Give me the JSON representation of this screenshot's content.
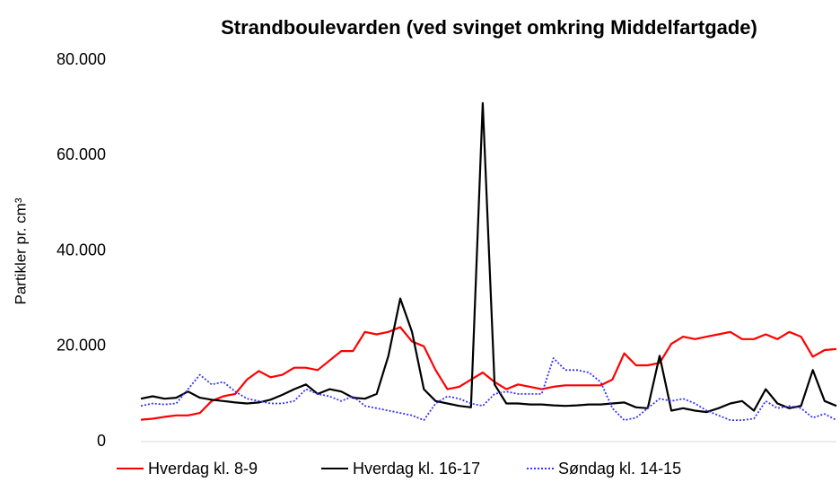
{
  "chart_data": {
    "type": "line",
    "title": "Strandboulevarden (ved svinget omkring Middelfartgade)",
    "y_label": "Partikler pr. cm³",
    "categories": [
      null,
      null,
      null,
      null,
      null,
      null,
      null,
      null,
      null,
      null,
      null,
      null,
      null,
      null,
      null,
      null,
      null,
      null,
      null,
      null,
      null,
      null,
      null,
      null,
      null,
      null,
      null,
      null,
      null,
      null,
      null,
      null,
      null,
      null,
      null,
      null,
      null,
      null,
      null,
      null,
      null,
      null,
      null,
      null,
      null,
      null,
      null,
      null,
      null,
      null,
      null,
      null,
      null,
      null,
      null,
      null,
      null,
      null,
      null,
      null
    ],
    "ylim": [
      0,
      80000
    ],
    "yticks": [
      {
        "value": 0,
        "label": "0"
      },
      {
        "value": 20000,
        "label": "20.000"
      },
      {
        "value": 40000,
        "label": "40.000"
      },
      {
        "value": 60000,
        "label": "60.000"
      },
      {
        "value": 80000,
        "label": "80.000"
      }
    ],
    "grid": false,
    "legend": "bottom",
    "series": [
      {
        "name": "Hverdag kl. 8-9",
        "color": "#ff0000",
        "dash": "solid",
        "values": [
          4600,
          4800,
          5200,
          5500,
          5500,
          6000,
          8500,
          9500,
          10000,
          13000,
          14800,
          13500,
          14000,
          15500,
          15500,
          15000,
          17000,
          19000,
          19000,
          23000,
          22500,
          23000,
          24000,
          21000,
          20000,
          15000,
          11000,
          11500,
          13000,
          14500,
          12500,
          11000,
          12000,
          11500,
          11000,
          11500,
          11800,
          11800,
          11800,
          11800,
          13000,
          18500,
          16000,
          16000,
          16500,
          20500,
          22000,
          21500,
          22000,
          22500,
          23000,
          21500,
          21500,
          22500,
          21500,
          23000,
          22000,
          17800,
          19200,
          19400
        ]
      },
      {
        "name": "Hverdag kl. 16-17",
        "color": "#000000",
        "dash": "solid",
        "values": [
          9000,
          9500,
          9000,
          9200,
          10500,
          9200,
          8800,
          8500,
          8200,
          8000,
          8200,
          8800,
          9800,
          11000,
          12000,
          10000,
          11000,
          10500,
          9200,
          9000,
          10000,
          18000,
          30000,
          23000,
          11000,
          8500,
          8000,
          7500,
          7200,
          71000,
          12000,
          8000,
          8000,
          7800,
          7800,
          7600,
          7500,
          7600,
          7800,
          7800,
          8000,
          8200,
          7200,
          7000,
          18000,
          6500,
          7000,
          6500,
          6200,
          7000,
          8000,
          8500,
          6500,
          11000,
          8000,
          7000,
          7500,
          15000,
          8500,
          7500
        ]
      },
      {
        "name": "Søndag kl. 14-15",
        "color": "#3333ff",
        "dash": "dotted",
        "values": [
          7500,
          8000,
          7800,
          8000,
          11000,
          14000,
          12000,
          12500,
          10500,
          9000,
          8500,
          8000,
          8000,
          8500,
          11000,
          10000,
          9500,
          8500,
          9500,
          7500,
          7000,
          6500,
          6000,
          5500,
          4500,
          8000,
          9500,
          9000,
          8000,
          7500,
          10000,
          10500,
          10000,
          10000,
          10000,
          17500,
          15000,
          15000,
          14500,
          12500,
          7000,
          4500,
          5000,
          7000,
          9000,
          8500,
          9000,
          8000,
          6500,
          5500,
          4500,
          4500,
          4800,
          8500,
          7000,
          7500,
          7000,
          5000,
          5800,
          4500
        ]
      }
    ]
  }
}
